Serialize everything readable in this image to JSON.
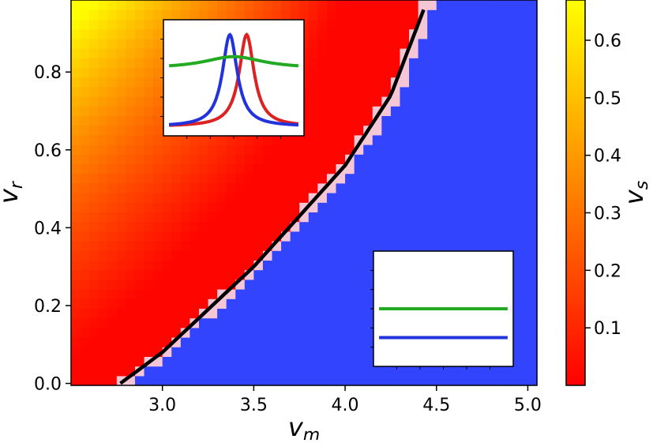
{
  "chart_data": {
    "type": "heatmap",
    "title": "",
    "xlabel": "v",
    "xlabel_sub": "m",
    "ylabel": "v",
    "ylabel_sub": "r",
    "xlim": [
      2.5,
      5.05
    ],
    "ylim": [
      -0.005,
      0.985
    ],
    "x_ticks": [
      "3.0",
      "3.5",
      "4.0",
      "4.5",
      "5.0"
    ],
    "y_ticks": [
      "0.0",
      "0.2",
      "0.4",
      "0.6",
      "0.8"
    ],
    "x_tick_values": [
      3.0,
      3.5,
      4.0,
      4.5,
      5.0
    ],
    "y_tick_values": [
      0.0,
      0.2,
      0.4,
      0.6,
      0.8
    ],
    "grid": false,
    "grid_size": [
      51,
      40
    ],
    "colormap": [
      "#ff0000",
      "#ff5500",
      "#ffaa00",
      "#ffff00"
    ],
    "low_region_color": "#3344ff",
    "colorbar": {
      "label": "v",
      "label_sub": "s",
      "range": [
        0.0,
        0.67
      ],
      "ticks": [
        "0.1",
        "0.2",
        "0.3",
        "0.4",
        "0.5",
        "0.6"
      ],
      "tick_values": [
        0.1,
        0.2,
        0.3,
        0.4,
        0.5,
        0.6
      ]
    },
    "boundary_curve": {
      "color": "#000000",
      "points": [
        [
          2.77,
          0.0
        ],
        [
          3.0,
          0.08
        ],
        [
          3.25,
          0.19
        ],
        [
          3.5,
          0.3
        ],
        [
          3.75,
          0.43
        ],
        [
          4.0,
          0.56
        ],
        [
          4.25,
          0.74
        ],
        [
          4.43,
          0.96
        ]
      ]
    },
    "insets": [
      {
        "position": "upper-left",
        "series": [
          {
            "color": "#dd2222",
            "kind": "peak",
            "center": 0.6,
            "width": 0.07,
            "height": 0.92
          },
          {
            "color": "#2233dd",
            "kind": "peak",
            "center": 0.47,
            "width": 0.07,
            "height": 0.92
          },
          {
            "color": "#22aa22",
            "kind": "peak",
            "center": 0.5,
            "width": 0.28,
            "height": 0.12,
            "baseline": 0.58
          }
        ]
      },
      {
        "position": "lower-right",
        "series": [
          {
            "color": "#22aa22",
            "kind": "flat",
            "level": 0.5
          },
          {
            "color": "#2233dd",
            "kind": "flat",
            "level": 0.25
          }
        ]
      }
    ]
  }
}
